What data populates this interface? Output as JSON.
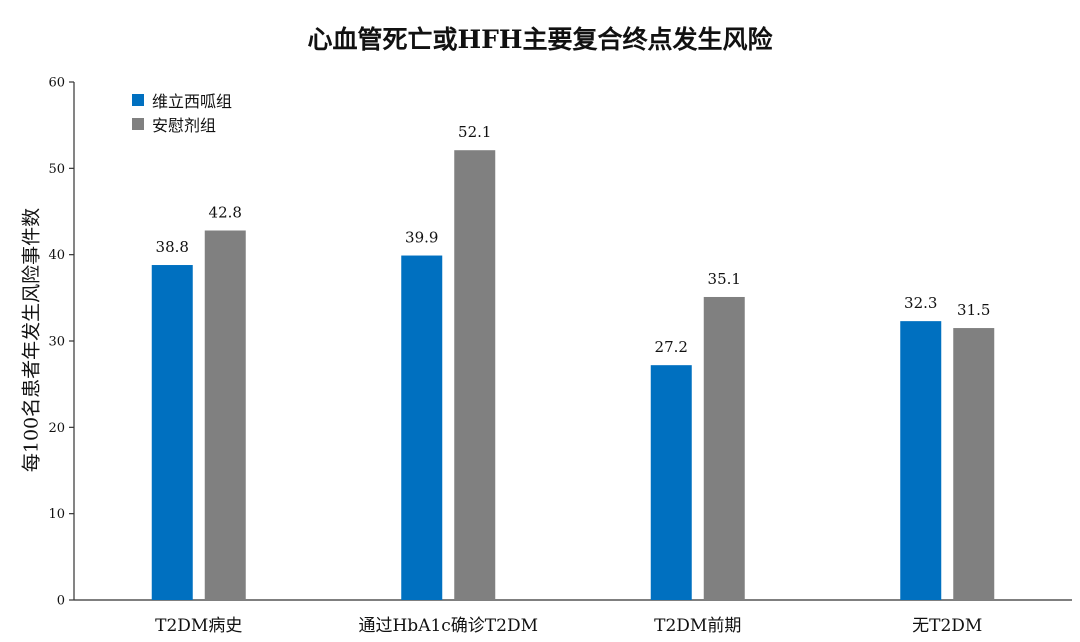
{
  "chart_data": {
    "type": "bar",
    "title": "心血管死亡或HFH主要复合终点发生风险",
    "ylabel": "每100名患者年发生风险事件数",
    "xlabel": "",
    "ylim": [
      0,
      60
    ],
    "yticks": [
      0,
      10,
      20,
      30,
      40,
      50,
      60
    ],
    "categories": [
      "T2DM病史",
      "通过HbA1c确诊T2DM",
      "T2DM前期",
      "无T2DM"
    ],
    "series": [
      {
        "name": "维立西呱组",
        "color": "#0070c0",
        "values": [
          38.8,
          39.9,
          27.2,
          32.3
        ],
        "labels": [
          "38.8",
          "39.9",
          "27.2",
          "32.3"
        ]
      },
      {
        "name": "安慰剂组",
        "color": "#808080",
        "values": [
          42.8,
          52.1,
          35.1,
          31.5
        ],
        "labels": [
          "42.8",
          "52.1",
          "35.1",
          "31.5"
        ]
      }
    ],
    "legend_position": "top-left",
    "grid": false
  }
}
